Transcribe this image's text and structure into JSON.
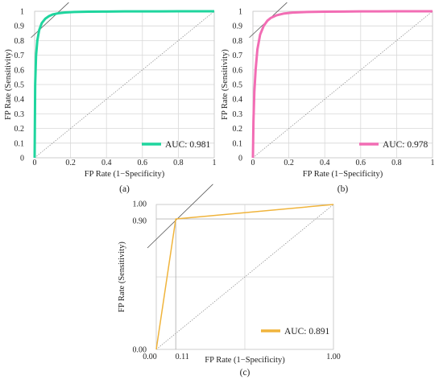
{
  "chart_data": [
    {
      "type": "line",
      "panel_label": "(a)",
      "xlabel": "FP Rate (1−Specificity)",
      "ylabel": "FP Rate (Sensitivity)",
      "xlim": [
        0,
        1
      ],
      "ylim": [
        0,
        1
      ],
      "xticks": [
        "0",
        "0.2",
        "0.4",
        "0.6",
        "0.8",
        "1"
      ],
      "yticks": [
        "0",
        "0.1",
        "0.2",
        "0.3",
        "0.4",
        "0.5",
        "0.6",
        "0.7",
        "0.8",
        "0.9",
        "1"
      ],
      "grid": true,
      "legend": {
        "label": "AUC: 0.981",
        "position": "bottom-right"
      },
      "colors": {
        "series": "#1FD59E",
        "diagonal": "#888888",
        "tangent": "#555555"
      },
      "series": [
        {
          "name": "AUC: 0.981",
          "x": [
            0,
            0.003,
            0.008,
            0.015,
            0.025,
            0.04,
            0.06,
            0.08,
            0.1,
            0.13,
            0.17,
            0.22,
            0.3,
            0.4,
            0.5,
            0.6,
            0.7,
            0.8,
            0.9,
            1.0
          ],
          "y": [
            0,
            0.5,
            0.7,
            0.8,
            0.87,
            0.92,
            0.95,
            0.967,
            0.978,
            0.986,
            0.992,
            0.995,
            0.997,
            0.998,
            0.999,
            0.999,
            0.9995,
            1.0,
            1.0,
            1.0
          ]
        }
      ]
    },
    {
      "type": "line",
      "panel_label": "(b)",
      "xlabel": "FP Rate (1−Specificity)",
      "ylabel": "FP Rate (Sensitivity)",
      "xlim": [
        0,
        1
      ],
      "ylim": [
        0,
        1
      ],
      "xticks": [
        "0",
        "0.2",
        "0.4",
        "0.6",
        "0.8",
        "1"
      ],
      "yticks": [
        "0",
        "0.1",
        "0.2",
        "0.3",
        "0.4",
        "0.5",
        "0.6",
        "0.7",
        "0.8",
        "0.9",
        "1"
      ],
      "grid": true,
      "legend": {
        "label": "AUC: 0.978",
        "position": "bottom-right"
      },
      "colors": {
        "series": "#F26DB4",
        "diagonal": "#888888",
        "tangent": "#555555"
      },
      "series": [
        {
          "name": "AUC: 0.978",
          "x": [
            0,
            0.003,
            0.008,
            0.015,
            0.025,
            0.04,
            0.06,
            0.08,
            0.1,
            0.13,
            0.17,
            0.22,
            0.3,
            0.4,
            0.5,
            0.6,
            0.7,
            0.8,
            0.9,
            1.0
          ],
          "y": [
            0,
            0.25,
            0.45,
            0.6,
            0.74,
            0.84,
            0.9,
            0.935,
            0.955,
            0.972,
            0.984,
            0.991,
            0.995,
            0.997,
            0.998,
            0.999,
            0.9995,
            1.0,
            1.0,
            1.0
          ]
        }
      ]
    },
    {
      "type": "line",
      "panel_label": "(c)",
      "xlabel": "FP Rate (1−Specificity)",
      "ylabel": "FP Rate (Sensitivity)",
      "xlim": [
        0,
        1
      ],
      "ylim": [
        0,
        1
      ],
      "xticks": [
        "0.00",
        "0.11",
        "1.00"
      ],
      "xtick_values": [
        0,
        0.11,
        1.0
      ],
      "yticks": [
        "0.00",
        "0.90",
        "1.00"
      ],
      "ytick_values": [
        0,
        0.9,
        1.0
      ],
      "grid": true,
      "legend": {
        "label": "AUC: 0.891",
        "position": "bottom-right"
      },
      "colors": {
        "series": "#F0B43C",
        "diagonal": "#888888",
        "tangent": "#555555",
        "guide": "#AAAAAA"
      },
      "series": [
        {
          "name": "AUC: 0.891",
          "x": [
            0,
            0.11,
            1.0
          ],
          "y": [
            0,
            0.9,
            1.0
          ]
        }
      ]
    }
  ]
}
